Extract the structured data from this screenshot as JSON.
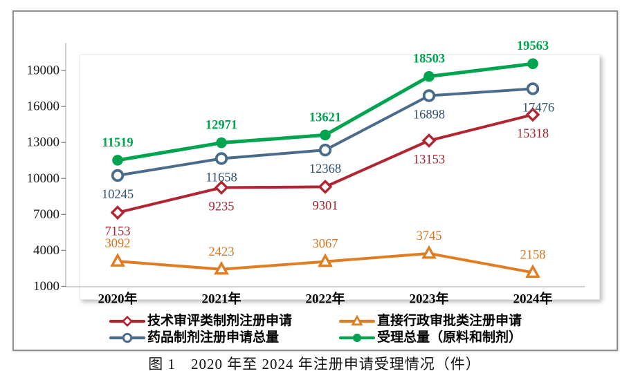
{
  "figure": {
    "caption": "图 1　2020 年至 2024 年注册申请受理情况（件）"
  },
  "chart_data": {
    "type": "line",
    "title": "",
    "categories": [
      "2020年",
      "2021年",
      "2022年",
      "2023年",
      "2024年"
    ],
    "series": [
      {
        "name": "技术审评类制剂注册申请",
        "marker": "diamond-open",
        "color": "#B02531",
        "label_color": "#A8242E",
        "label_position": "below",
        "bold_labels": false,
        "values": [
          7153,
          9235,
          9301,
          13153,
          15318
        ]
      },
      {
        "name": "直接行政审批类注册申请",
        "marker": "triangle-open",
        "color": "#E07C21",
        "label_color": "#D8751B",
        "label_position": "above",
        "bold_labels": false,
        "values": [
          3092,
          2423,
          3067,
          3745,
          2158
        ]
      },
      {
        "name": "药品制剂注册申请总量",
        "marker": "circle-open",
        "color": "#4A6B8A",
        "label_color": "#2F516E",
        "label_position": "below",
        "bold_labels": false,
        "values": [
          10245,
          11658,
          12368,
          16898,
          17476
        ]
      },
      {
        "name": "受理总量（原料和制剂）",
        "marker": "circle-filled",
        "color": "#00A44F",
        "label_color": "#00A44F",
        "label_position": "above",
        "bold_labels": true,
        "values": [
          11519,
          12971,
          13621,
          18503,
          19563
        ]
      }
    ],
    "xlabel": "",
    "ylabel": "",
    "yticks": [
      1000,
      4000,
      7000,
      10000,
      13000,
      16000,
      19000
    ],
    "ylim": [
      1000,
      21300
    ],
    "grid": false,
    "legend_position": "bottom",
    "axis_color": "#b3b3b3",
    "tick_color": "#808080",
    "tick_label_color": "#1a1a1a",
    "x_label_color": "#000000"
  }
}
